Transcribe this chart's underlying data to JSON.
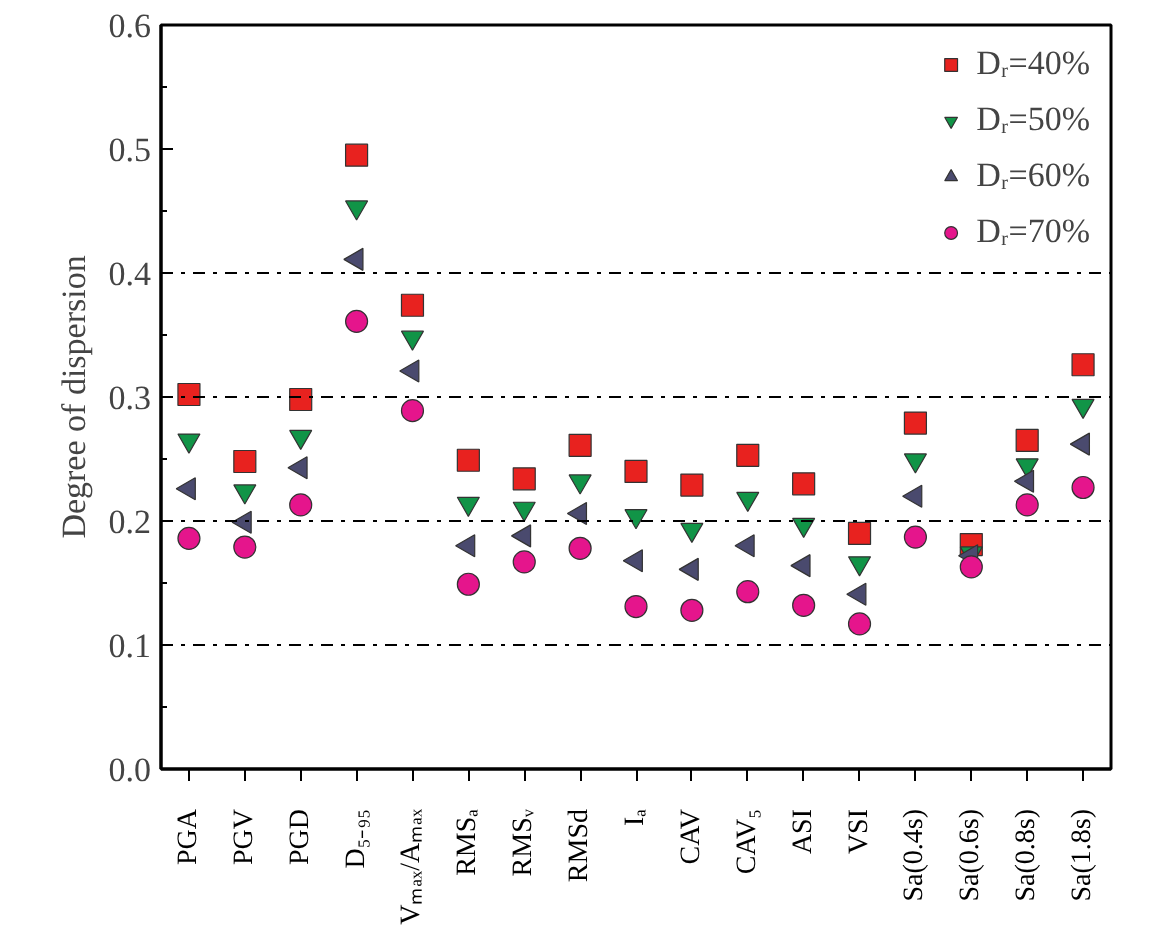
{
  "chart_data": {
    "type": "scatter",
    "ylabel": "Degree of dispersion",
    "categories": [
      "PGA",
      "PGV",
      "PGD",
      "D₅₋₉₅",
      "Vₘₐₓ/Aₘₐₓ",
      "RMSₐ",
      "RMSᵥ",
      "RMSd",
      "Iₐ",
      "CAV",
      "CAV₅",
      "ASI",
      "VSI",
      "Sa(0.4s)",
      "Sa(0.6s)",
      "Sa(0.8s)",
      "Sa(1.8s)"
    ],
    "series": [
      {
        "name": "Dᵣ=40%",
        "color": "#e8221f",
        "marker": "square",
        "values": [
          0.302,
          0.248,
          0.298,
          0.495,
          0.374,
          0.249,
          0.234,
          0.261,
          0.24,
          0.229,
          0.253,
          0.23,
          0.19,
          0.279,
          0.181,
          0.265,
          0.326
        ]
      },
      {
        "name": "Dᵣ=50%",
        "color": "#119447",
        "marker": "triangle-down",
        "values": [
          0.265,
          0.224,
          0.268,
          0.453,
          0.348,
          0.214,
          0.21,
          0.232,
          0.204,
          0.193,
          0.218,
          0.197,
          0.166,
          0.249,
          0.174,
          0.245,
          0.293
        ]
      },
      {
        "name": "Dᵣ=60%",
        "color": "#4a4a6e",
        "marker": "triangle-left",
        "values": [
          0.226,
          0.199,
          0.243,
          0.411,
          0.321,
          0.18,
          0.188,
          0.206,
          0.168,
          0.161,
          0.18,
          0.164,
          0.141,
          0.22,
          0.172,
          0.232,
          0.262
        ]
      },
      {
        "name": "Dᵣ=70%",
        "color": "#e5158c",
        "marker": "circle",
        "values": [
          0.186,
          0.179,
          0.213,
          0.361,
          0.289,
          0.149,
          0.167,
          0.178,
          0.131,
          0.128,
          0.143,
          0.132,
          0.117,
          0.187,
          0.163,
          0.213,
          0.227
        ]
      }
    ],
    "ylim": [
      0,
      0.6
    ],
    "yticks": [
      {
        "value": 0,
        "label": "0.0"
      },
      {
        "value": 0.05,
        "label": null
      },
      {
        "value": 0.1,
        "label": "0.1"
      },
      {
        "value": 0.15,
        "label": null
      },
      {
        "value": 0.2,
        "label": "0.2"
      },
      {
        "value": 0.25,
        "label": null
      },
      {
        "value": 0.3,
        "label": "0.3"
      },
      {
        "value": 0.35,
        "label": null
      },
      {
        "value": 0.4,
        "label": "0.4"
      },
      {
        "value": 0.45,
        "label": null
      },
      {
        "value": 0.5,
        "label": "0.5"
      },
      {
        "value": 0.55,
        "label": null
      },
      {
        "value": 0.6,
        "label": "0.6"
      }
    ],
    "ref_lines": [
      {
        "axis": "y",
        "value": 0.1,
        "color": "#000000",
        "line_style": "dashdot"
      },
      {
        "axis": "y",
        "value": 0.2,
        "color": "#000000",
        "line_style": "dashdot"
      },
      {
        "axis": "y",
        "value": 0.3,
        "color": "#000000",
        "line_style": "dashdot"
      },
      {
        "axis": "y",
        "value": 0.4,
        "color": "#000000",
        "line_style": "dashdot"
      }
    ],
    "grid": false,
    "legend": "top right"
  }
}
